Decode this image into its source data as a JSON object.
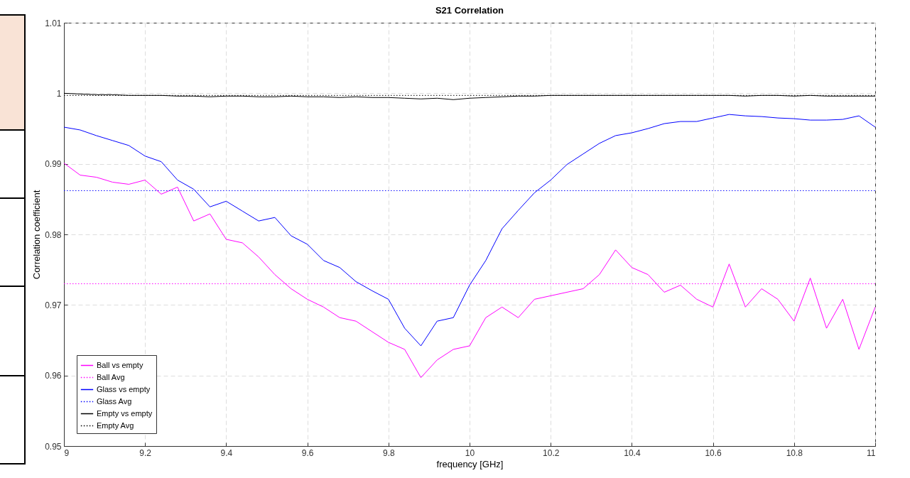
{
  "chart_data": {
    "type": "line",
    "title": "S21 Correlation",
    "xlabel": "frequency [GHz]",
    "ylabel": "Correlation coefficient",
    "x": [
      9,
      9.04,
      9.08,
      9.12,
      9.16,
      9.2,
      9.24,
      9.28,
      9.32,
      9.36,
      9.4,
      9.44,
      9.48,
      9.52,
      9.56,
      9.6,
      9.64,
      9.68,
      9.72,
      9.76,
      9.8,
      9.84,
      9.88,
      9.92,
      9.96,
      10,
      10.04,
      10.08,
      10.12,
      10.16,
      10.2,
      10.24,
      10.28,
      10.32,
      10.36,
      10.4,
      10.44,
      10.48,
      10.52,
      10.56,
      10.6,
      10.64,
      10.68,
      10.72,
      10.76,
      10.8,
      10.84,
      10.88,
      10.92,
      10.96,
      11
    ],
    "series": [
      {
        "name": "Ball vs empty",
        "color": "#ff00ff",
        "line_style": "solid",
        "values": [
          0.9901,
          0.9884,
          0.9881,
          0.9874,
          0.9871,
          0.9877,
          0.9857,
          0.9867,
          0.9819,
          0.9829,
          0.9793,
          0.9788,
          0.9768,
          0.9743,
          0.9723,
          0.9708,
          0.9697,
          0.9682,
          0.9677,
          0.9662,
          0.9647,
          0.9637,
          0.9597,
          0.9622,
          0.9637,
          0.9642,
          0.9682,
          0.9697,
          0.9682,
          0.9708,
          0.9713,
          0.9718,
          0.9723,
          0.9743,
          0.9778,
          0.9753,
          0.9743,
          0.9718,
          0.9728,
          0.9708,
          0.9697,
          0.9758,
          0.9697,
          0.9723,
          0.9708,
          0.9677,
          0.9738,
          0.9667,
          0.9708,
          0.9637,
          0.9697
        ]
      },
      {
        "name": "Ball Avg",
        "color": "#ff00ff",
        "line_style": "dotted",
        "values": [
          0.973,
          0.973,
          0.973,
          0.973,
          0.973,
          0.973,
          0.973,
          0.973,
          0.973,
          0.973,
          0.973,
          0.973,
          0.973,
          0.973,
          0.973,
          0.973,
          0.973,
          0.973,
          0.973,
          0.973,
          0.973,
          0.973,
          0.973,
          0.973,
          0.973,
          0.973,
          0.973,
          0.973,
          0.973,
          0.973,
          0.973,
          0.973,
          0.973,
          0.973,
          0.973,
          0.973,
          0.973,
          0.973,
          0.973,
          0.973,
          0.973,
          0.973,
          0.973,
          0.973,
          0.973,
          0.973,
          0.973,
          0.973,
          0.973,
          0.973,
          0.973
        ]
      },
      {
        "name": "Glass vs empty",
        "color": "#0000ff",
        "line_style": "solid",
        "values": [
          0.9952,
          0.9948,
          0.994,
          0.9933,
          0.9926,
          0.9911,
          0.9903,
          0.9877,
          0.9864,
          0.9839,
          0.9847,
          0.9833,
          0.9819,
          0.9824,
          0.9798,
          0.9786,
          0.9763,
          0.9753,
          0.9733,
          0.972,
          0.9708,
          0.9667,
          0.9642,
          0.9677,
          0.9682,
          0.9728,
          0.9763,
          0.9808,
          0.9834,
          0.9859,
          0.9877,
          0.9899,
          0.9914,
          0.9929,
          0.994,
          0.9944,
          0.995,
          0.9957,
          0.996,
          0.996,
          0.9965,
          0.997,
          0.9968,
          0.9967,
          0.9965,
          0.9964,
          0.9962,
          0.9962,
          0.9963,
          0.9968,
          0.9952
        ]
      },
      {
        "name": "Glass Avg",
        "color": "#0000ff",
        "line_style": "dotted",
        "values": [
          0.9862,
          0.9862,
          0.9862,
          0.9862,
          0.9862,
          0.9862,
          0.9862,
          0.9862,
          0.9862,
          0.9862,
          0.9862,
          0.9862,
          0.9862,
          0.9862,
          0.9862,
          0.9862,
          0.9862,
          0.9862,
          0.9862,
          0.9862,
          0.9862,
          0.9862,
          0.9862,
          0.9862,
          0.9862,
          0.9862,
          0.9862,
          0.9862,
          0.9862,
          0.9862,
          0.9862,
          0.9862,
          0.9862,
          0.9862,
          0.9862,
          0.9862,
          0.9862,
          0.9862,
          0.9862,
          0.9862,
          0.9862,
          0.9862,
          0.9862,
          0.9862,
          0.9862,
          0.9862,
          0.9862,
          0.9862,
          0.9862,
          0.9862,
          0.9862
        ]
      },
      {
        "name": "Empty vs empty",
        "color": "#000000",
        "line_style": "solid",
        "values": [
          1,
          0.9999,
          0.9998,
          0.9998,
          0.9997,
          0.9997,
          0.9997,
          0.9996,
          0.9996,
          0.9995,
          0.9996,
          0.9996,
          0.9995,
          0.9995,
          0.9996,
          0.9995,
          0.9995,
          0.9994,
          0.9995,
          0.9994,
          0.9994,
          0.9993,
          0.9992,
          0.9993,
          0.9991,
          0.9993,
          0.9994,
          0.9995,
          0.9996,
          0.9996,
          0.9997,
          0.9997,
          0.9997,
          0.9997,
          0.9997,
          0.9997,
          0.9997,
          0.9997,
          0.9997,
          0.9997,
          0.9997,
          0.9997,
          0.9996,
          0.9997,
          0.9997,
          0.9996,
          0.9997,
          0.9996,
          0.9996,
          0.9996,
          0.9996
        ]
      },
      {
        "name": "Empty Avg",
        "color": "#000000",
        "line_style": "dotted",
        "values": [
          0.9997,
          0.9997,
          0.9997,
          0.9997,
          0.9997,
          0.9997,
          0.9997,
          0.9997,
          0.9997,
          0.9997,
          0.9997,
          0.9997,
          0.9997,
          0.9997,
          0.9997,
          0.9997,
          0.9997,
          0.9997,
          0.9997,
          0.9997,
          0.9997,
          0.9997,
          0.9997,
          0.9997,
          0.9997,
          0.9997,
          0.9997,
          0.9997,
          0.9997,
          0.9997,
          0.9997,
          0.9997,
          0.9997,
          0.9997,
          0.9997,
          0.9997,
          0.9997,
          0.9997,
          0.9997,
          0.9997,
          0.9997,
          0.9997,
          0.9997,
          0.9997,
          0.9997,
          0.9997,
          0.9997,
          0.9997,
          0.9997,
          0.9997,
          0.9997
        ]
      }
    ],
    "xlim": [
      9,
      11
    ],
    "xticks": [
      9,
      9.2,
      9.4,
      9.6,
      9.8,
      10,
      10.2,
      10.4,
      10.6,
      10.8,
      11
    ],
    "ylim": [
      0.95,
      1.01
    ],
    "yticks": [
      0.95,
      0.96,
      0.97,
      0.98,
      0.99,
      1,
      1.01
    ],
    "grid": true,
    "legend": "bottom left"
  }
}
